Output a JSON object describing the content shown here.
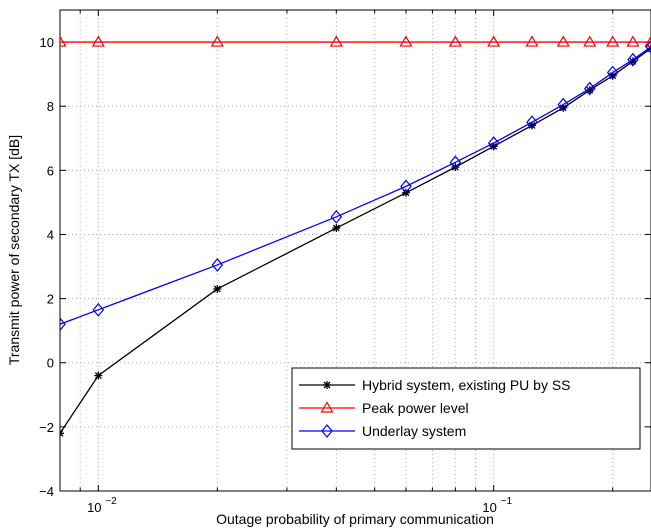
{
  "chart_data": {
    "type": "line",
    "title": "",
    "xlabel": "Outage probability of primary communication",
    "ylabel": "Transmit power of secondary TX [dB]",
    "xscale": "log",
    "xlim": [
      0.008,
      0.25
    ],
    "ylim": [
      -4,
      11
    ],
    "yticks": [
      -4,
      -2,
      0,
      2,
      4,
      6,
      8,
      10
    ],
    "ytick_labels": [
      "−4",
      "−2",
      "0",
      "2",
      "4",
      "6",
      "8",
      "10"
    ],
    "xticks": [
      {
        "value": 0.01,
        "base": "10",
        "exp": "−2"
      },
      {
        "value": 0.1,
        "base": "10",
        "exp": "−1"
      }
    ],
    "grid": true,
    "legend_position": "lower-right",
    "series": [
      {
        "name": "Hybrid system, existing PU by SS",
        "color": "#000000",
        "marker": "asterisk",
        "x": [
          0.008,
          0.01,
          0.02,
          0.04,
          0.06,
          0.08,
          0.1,
          0.125,
          0.15,
          0.175,
          0.2,
          0.225,
          0.25
        ],
        "y": [
          -2.2,
          -0.4,
          2.3,
          4.2,
          5.3,
          6.1,
          6.75,
          7.4,
          7.95,
          8.5,
          8.95,
          9.4,
          9.8
        ]
      },
      {
        "name": "Peak power level",
        "color": "#ff0000",
        "marker": "triangle",
        "x": [
          0.008,
          0.01,
          0.02,
          0.04,
          0.06,
          0.08,
          0.1,
          0.125,
          0.15,
          0.175,
          0.2,
          0.225,
          0.25
        ],
        "y": [
          10,
          10,
          10,
          10,
          10,
          10,
          10,
          10,
          10,
          10,
          10,
          10,
          10
        ]
      },
      {
        "name": "Underlay system",
        "color": "#0000ff",
        "marker": "diamond",
        "x": [
          0.008,
          0.01,
          0.02,
          0.04,
          0.06,
          0.08,
          0.1,
          0.125,
          0.15,
          0.175,
          0.2,
          0.225,
          0.25
        ],
        "y": [
          1.2,
          1.65,
          3.05,
          4.55,
          5.5,
          6.25,
          6.85,
          7.5,
          8.05,
          8.55,
          9.05,
          9.45,
          9.85
        ]
      }
    ]
  }
}
